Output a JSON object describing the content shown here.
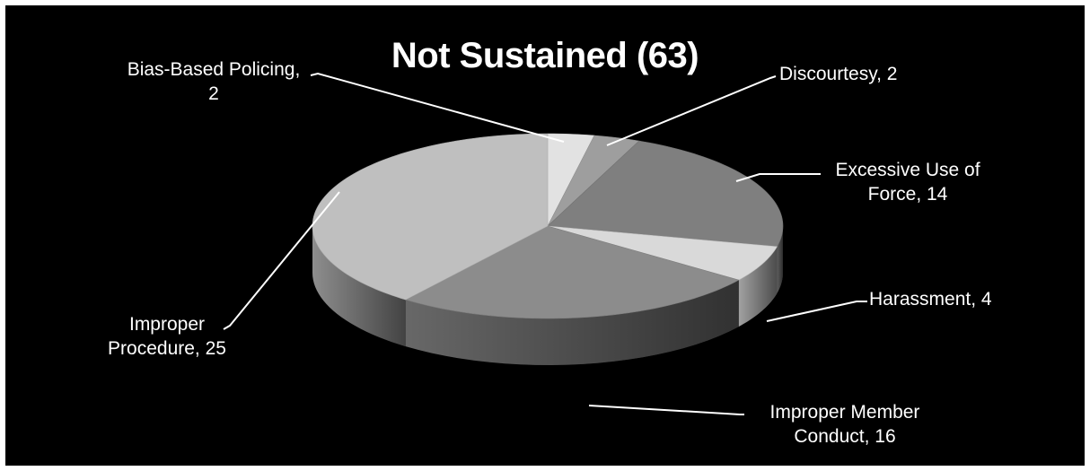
{
  "chart_data": {
    "type": "pie",
    "title": "Not Sustained (63)",
    "style": "3d",
    "slices": [
      {
        "label_lines": [
          "Bias-Based Policing,",
          "2"
        ],
        "category": "Bias-Based Policing",
        "value": 2,
        "color": "#e2e2e2"
      },
      {
        "label_lines": [
          "Discourtesy, 2"
        ],
        "category": "Discourtesy",
        "value": 2,
        "color": "#9e9e9e"
      },
      {
        "label_lines": [
          "Excessive Use of",
          "Force, 14"
        ],
        "category": "Excessive Use of Force",
        "value": 14,
        "color": "#7f7f7f"
      },
      {
        "label_lines": [
          "Harassment, 4"
        ],
        "category": "Harassment",
        "value": 4,
        "color": "#d9d9d9"
      },
      {
        "label_lines": [
          "Improper Member",
          "Conduct, 16"
        ],
        "category": "Improper Member Conduct",
        "value": 16,
        "color": "#8c8c8c"
      },
      {
        "label_lines": [
          "Improper",
          "Procedure, 25"
        ],
        "category": "Improper Procedure",
        "value": 25,
        "color": "#bfbfbf"
      }
    ],
    "background": "#000000",
    "label_color": "#ffffff",
    "leader_line_color": "#ffffff"
  }
}
